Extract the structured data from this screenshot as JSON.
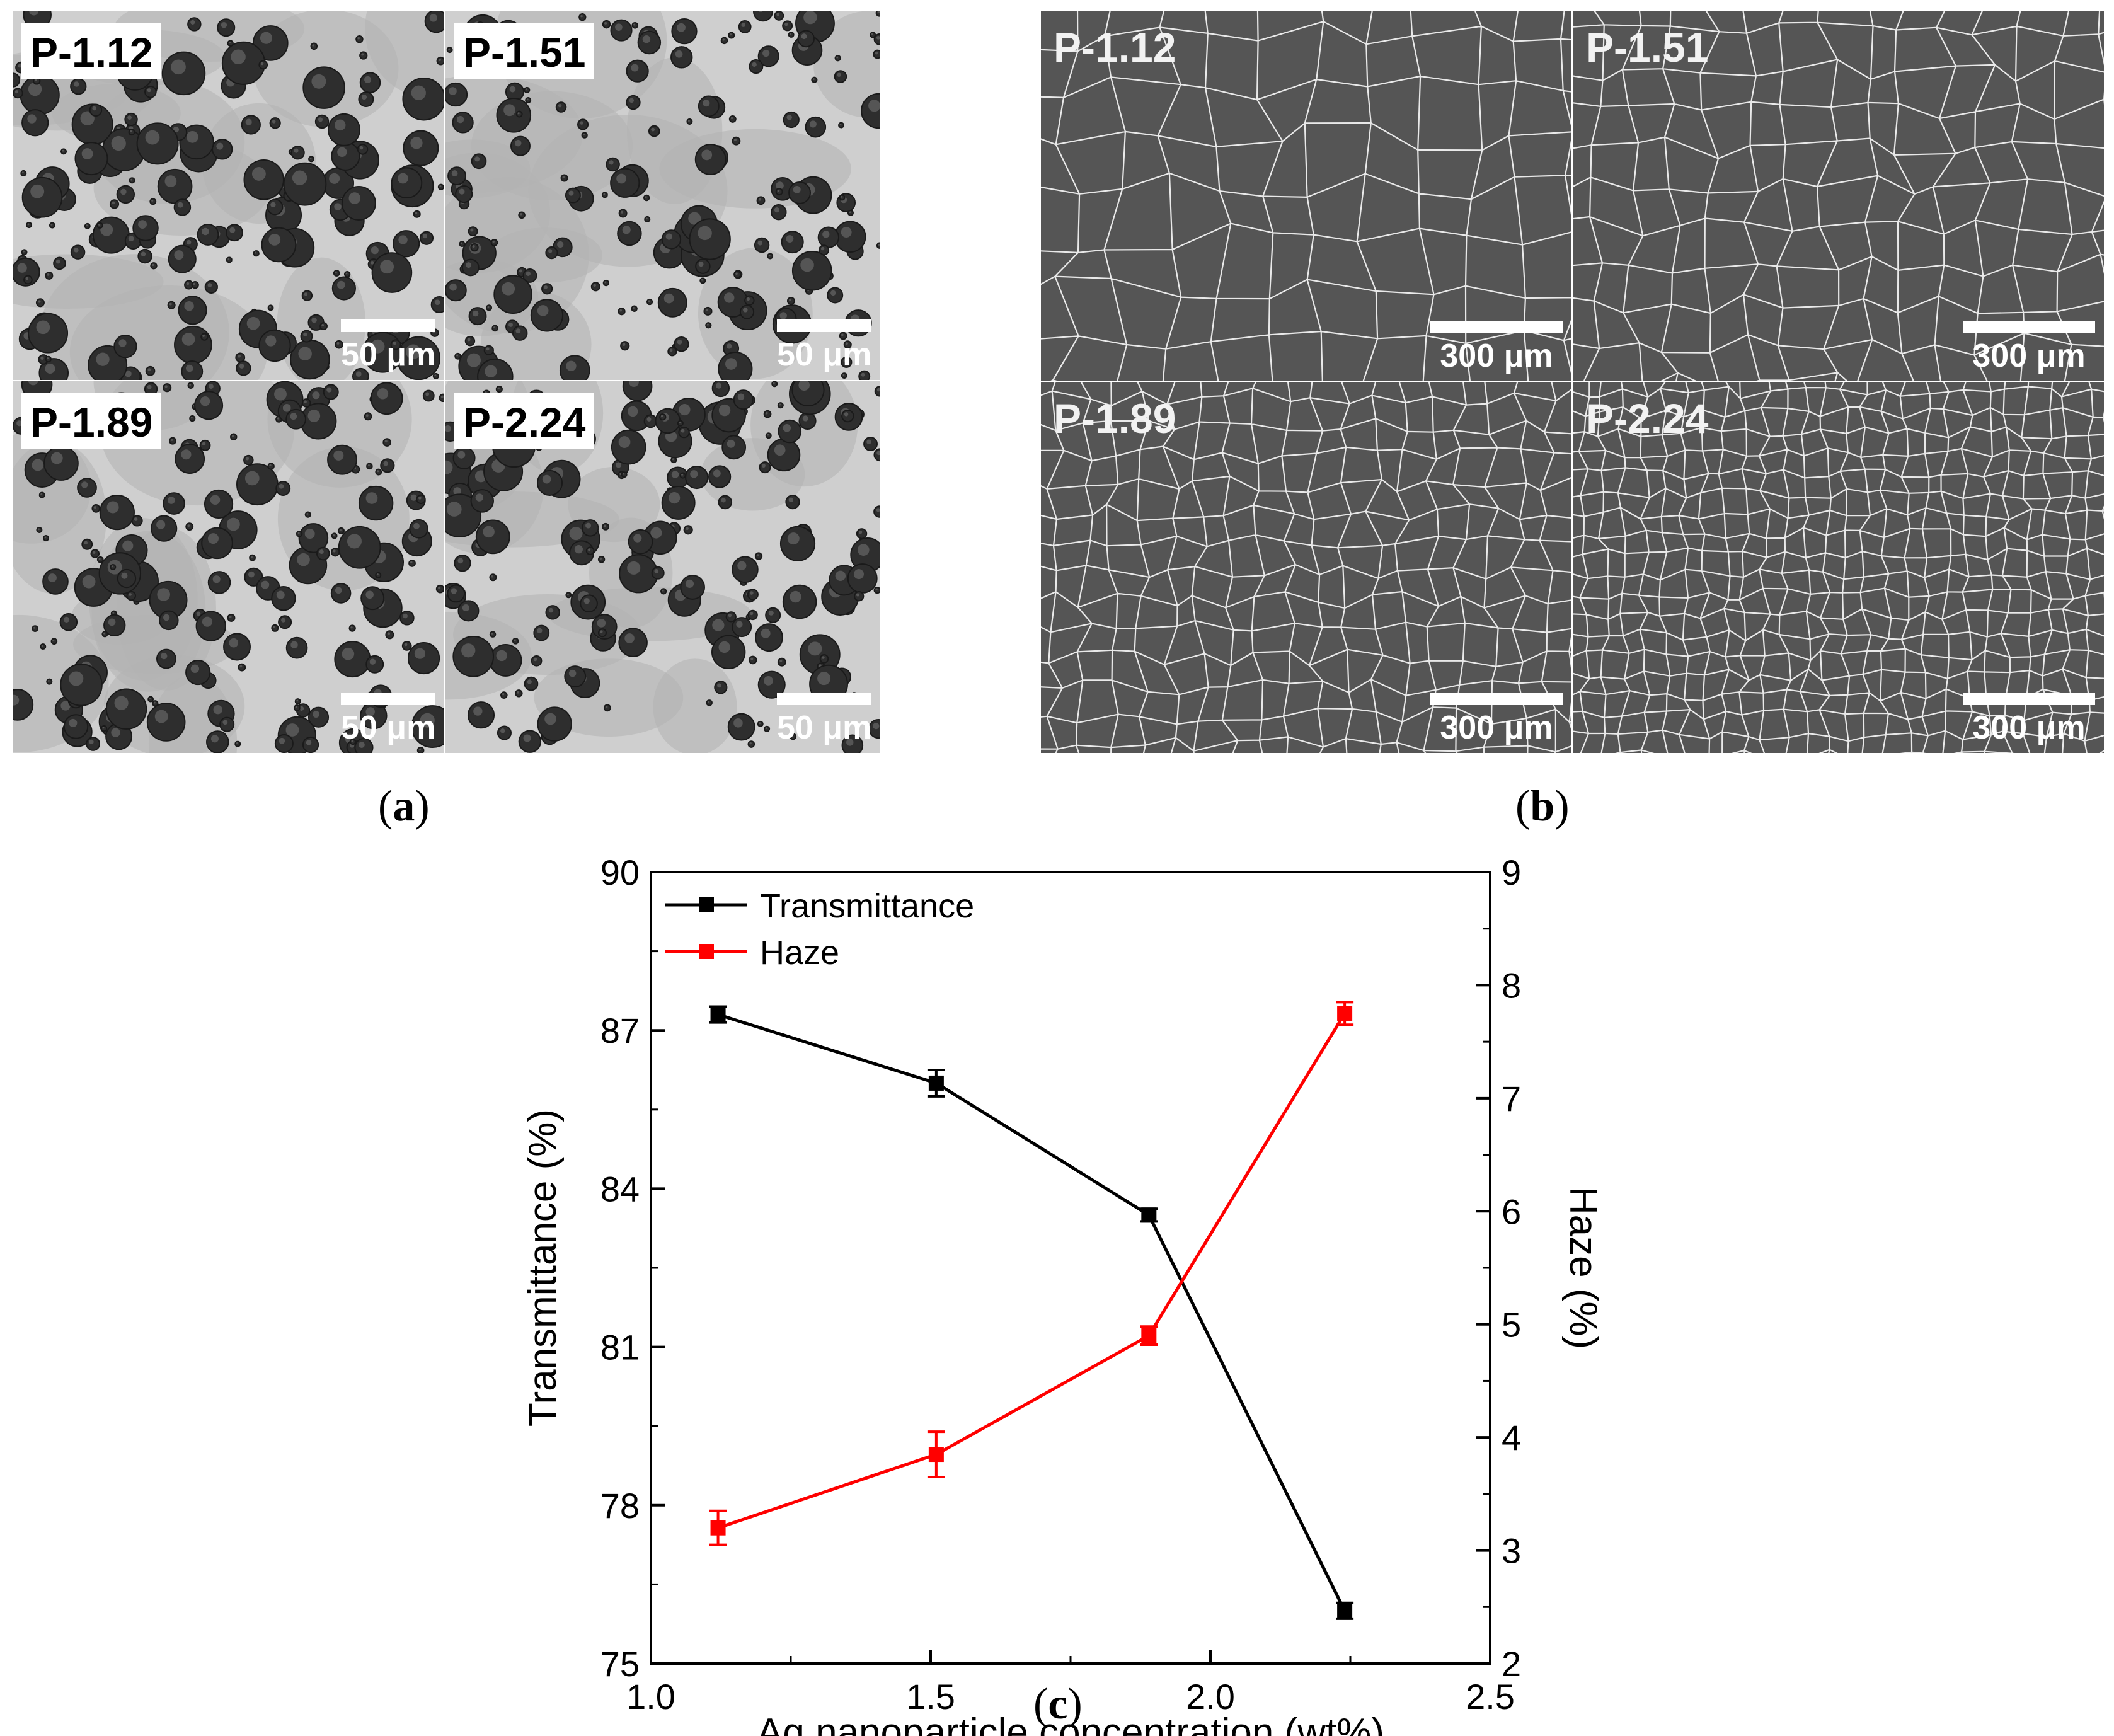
{
  "panel_a": {
    "images": [
      {
        "label": "P-1.12",
        "scale": "50 μm"
      },
      {
        "label": "P-1.51",
        "scale": "50 μm"
      },
      {
        "label": "P-1.89",
        "scale": "50 μm"
      },
      {
        "label": "P-2.24",
        "scale": "50 μm"
      }
    ],
    "caption_open": "(",
    "caption_letter": "a",
    "caption_close": ")"
  },
  "panel_b": {
    "images": [
      {
        "label": "P-1.12",
        "scale": "300 μm"
      },
      {
        "label": "P-1.51",
        "scale": "300 μm"
      },
      {
        "label": "P-1.89",
        "scale": "300 μm"
      },
      {
        "label": "P-2.24",
        "scale": "300 μm"
      }
    ],
    "caption_open": "(",
    "caption_letter": "b",
    "caption_close": ")"
  },
  "panel_c": {
    "caption_open": "(",
    "caption_letter": "c",
    "caption_close": ")"
  },
  "colors": {
    "transmittance": "#000000",
    "haze": "#ff0000"
  },
  "chart_data": {
    "type": "line",
    "xlabel": "Ag nanoparticle concentration (wt%)",
    "ylabel": "Transmittance (%)",
    "y2label": "Haze (%)",
    "xlim": [
      1.0,
      2.5
    ],
    "ylim": [
      75,
      90
    ],
    "y2lim": [
      2,
      9
    ],
    "xticks": [
      "1.0",
      "1.5",
      "2.0",
      "2.5"
    ],
    "yticks": [
      "75",
      "78",
      "81",
      "84",
      "87",
      "90"
    ],
    "y2ticks": [
      "2",
      "3",
      "4",
      "5",
      "6",
      "7",
      "8",
      "9"
    ],
    "x": [
      1.12,
      1.51,
      1.89,
      2.24
    ],
    "series": [
      {
        "name": "Transmittance",
        "axis": "left",
        "color": "#000000",
        "values": [
          87.3,
          86.0,
          83.5,
          76.0
        ],
        "errors": [
          0.15,
          0.25,
          0.12,
          0.15
        ]
      },
      {
        "name": "Haze",
        "axis": "right",
        "color": "#ff0000",
        "values": [
          3.2,
          3.85,
          4.9,
          7.75
        ],
        "errors": [
          0.15,
          0.2,
          0.08,
          0.1
        ]
      }
    ],
    "legend_position": "top-left",
    "grid": false
  }
}
